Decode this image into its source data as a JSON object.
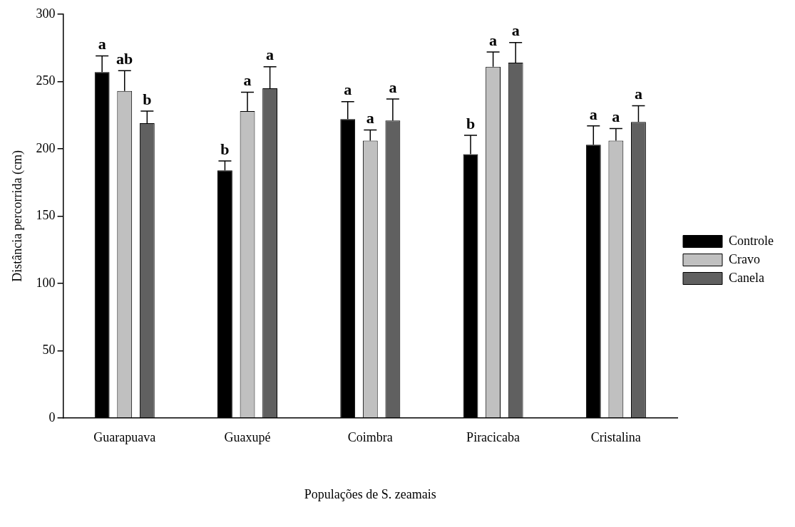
{
  "chart_data": {
    "type": "bar",
    "xlabel": "Populações de S. zeamais",
    "ylabel": "Distância percorrida (cm)",
    "categories": [
      "Guarapuava",
      "Guaxupé",
      "Coimbra",
      "Piracicaba",
      "Cristalina"
    ],
    "series": [
      {
        "name": "Controle",
        "color": "#000000",
        "values": [
          257,
          184,
          222,
          196,
          203
        ],
        "errors": [
          [
            257,
            269
          ],
          [
            184,
            191
          ],
          [
            222,
            235
          ],
          [
            196,
            210
          ],
          [
            203,
            217
          ]
        ],
        "value_labels": [
          "a",
          "b",
          "a",
          "b",
          "a"
        ]
      },
      {
        "name": "Cravo",
        "color": "#c0c0c0",
        "values": [
          243,
          228,
          206,
          261,
          206
        ],
        "errors": [
          [
            243,
            258
          ],
          [
            228,
            242
          ],
          [
            206,
            214
          ],
          [
            261,
            272
          ],
          [
            206,
            215
          ]
        ],
        "value_labels": [
          "ab",
          "a",
          "a",
          "a",
          "a"
        ]
      },
      {
        "name": "Canela",
        "color": "#606060",
        "values": [
          219,
          245,
          221,
          264,
          220
        ],
        "errors": [
          [
            219,
            228
          ],
          [
            245,
            261
          ],
          [
            221,
            237
          ],
          [
            264,
            279
          ],
          [
            220,
            232
          ]
        ],
        "value_labels": [
          "b",
          "a",
          "a",
          "a",
          "a"
        ]
      }
    ],
    "ylim": [
      0,
      300
    ],
    "yticks": [
      0,
      50,
      100,
      150,
      200,
      250,
      300
    ],
    "grid": false,
    "legend": "right"
  }
}
